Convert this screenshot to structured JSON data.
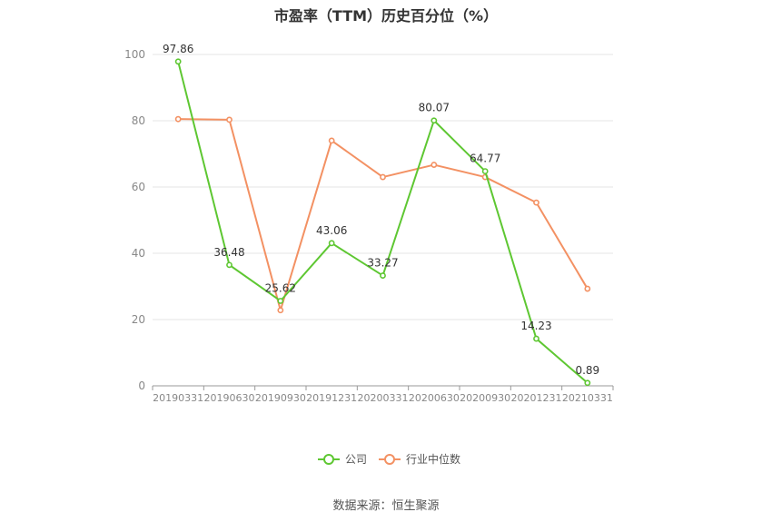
{
  "chart_data": {
    "type": "line",
    "title": "市盈率（TTM）历史百分位（%）",
    "categories": [
      "20190331",
      "20190630",
      "20190930",
      "20191231",
      "20200331",
      "20200630",
      "20200930",
      "20201231",
      "20210331"
    ],
    "series": [
      {
        "name": "公司",
        "color": "#5ec732",
        "values": [
          97.86,
          36.48,
          25.62,
          43.06,
          33.27,
          80.07,
          64.77,
          14.23,
          0.89
        ],
        "labels": [
          "97.86",
          "36.48",
          "25.62",
          "43.06",
          "33.27",
          "80.07",
          "64.77",
          "14.23",
          "0.89"
        ]
      },
      {
        "name": "行业中位数",
        "color": "#f39163",
        "values": [
          80.5,
          80.3,
          22.8,
          74.0,
          63.0,
          66.7,
          63.0,
          55.3,
          29.3
        ]
      }
    ],
    "yticks": [
      "0",
      "20",
      "40",
      "60",
      "80",
      "100"
    ],
    "ylim": [
      0,
      100
    ],
    "grid": true,
    "legend": "bottom-center"
  },
  "source": "数据来源：恒生聚源"
}
